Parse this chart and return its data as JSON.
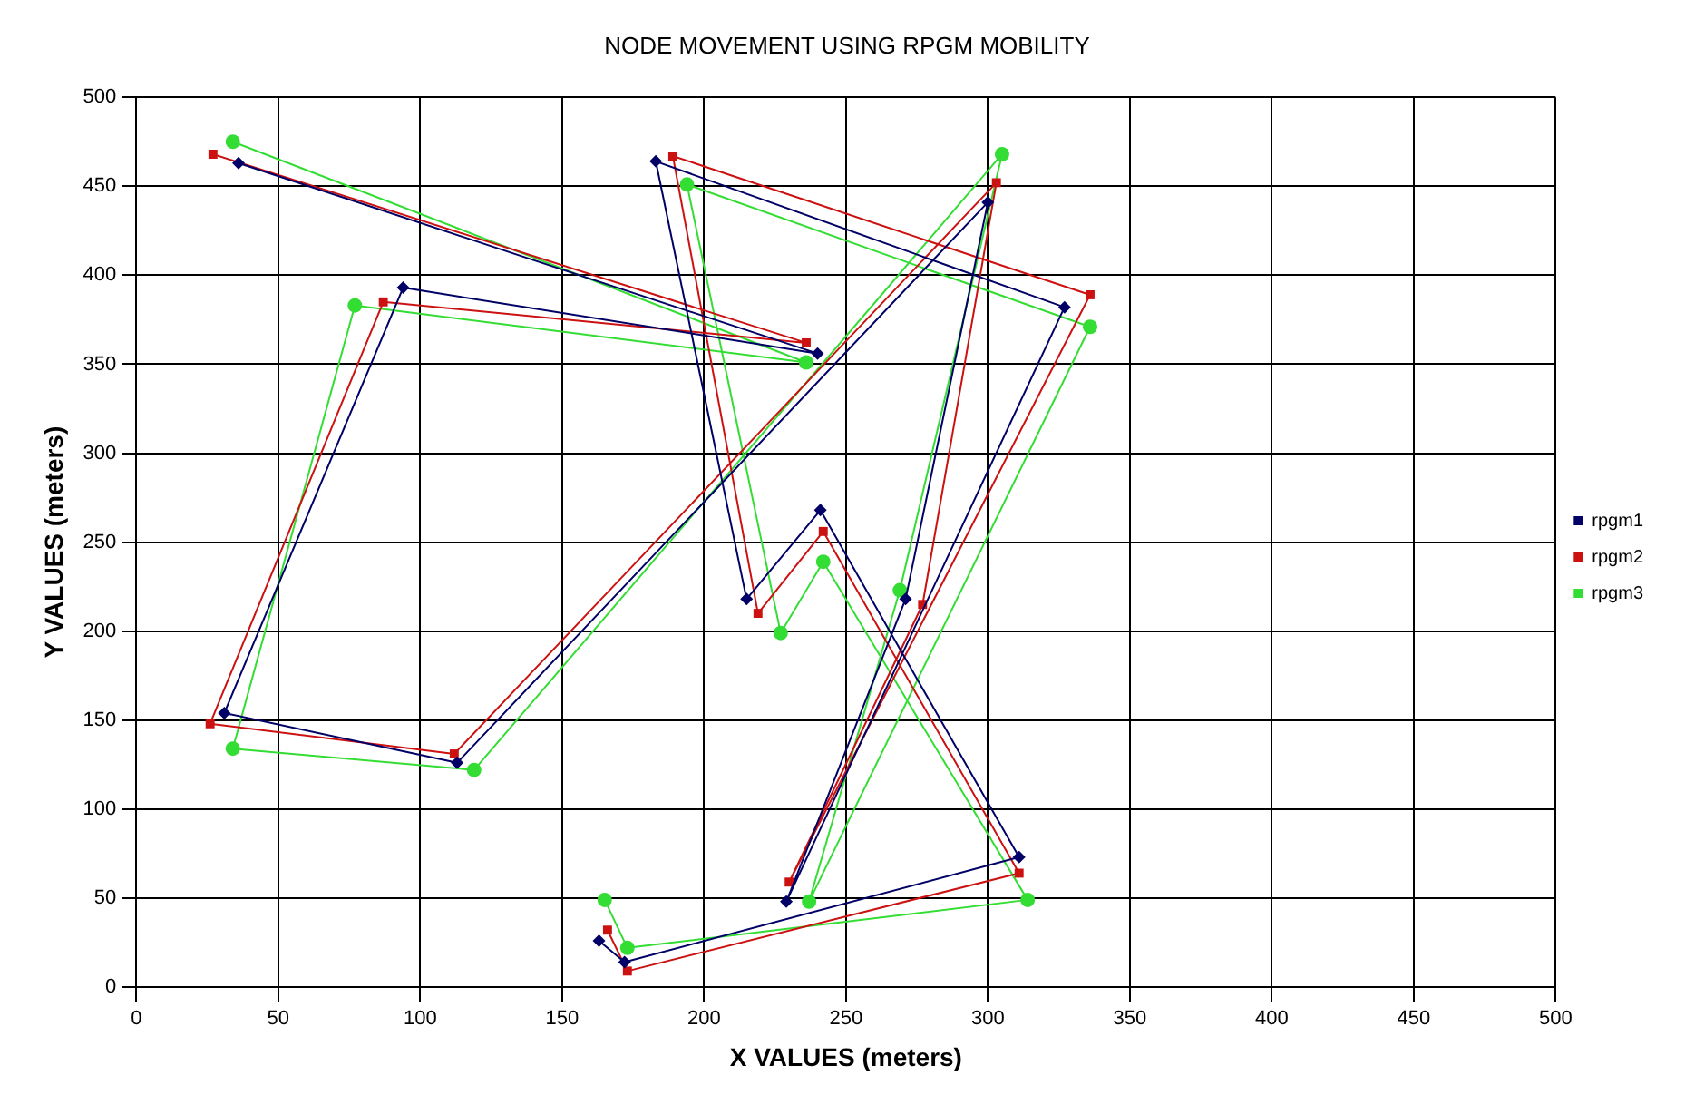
{
  "chart_data": {
    "type": "line",
    "title": "NODE MOVEMENT USING RPGM MOBILITY",
    "xlabel": "X VALUES (meters)",
    "ylabel": "Y VALUES (meters)",
    "xlim": [
      0,
      500
    ],
    "xticks": [
      0,
      50,
      100,
      150,
      200,
      250,
      300,
      350,
      400,
      450,
      500
    ],
    "ylim": [
      0,
      500
    ],
    "yticks": [
      0,
      50,
      100,
      150,
      200,
      250,
      300,
      350,
      400,
      450,
      500
    ],
    "grid": true,
    "legend": "right",
    "line_style": "solid",
    "series": [
      {
        "name": "rpgm1",
        "color": "#000066",
        "marker": "diamond",
        "x": [
          36,
          240,
          94,
          31,
          113,
          300,
          271,
          229,
          327,
          183,
          215,
          241,
          311,
          172,
          163
        ],
        "values": [
          463,
          356,
          393,
          154,
          126,
          441,
          218,
          48,
          382,
          464,
          218,
          268,
          73,
          14,
          26
        ]
      },
      {
        "name": "rpgm2",
        "color": "#cc1111",
        "marker": "square",
        "x": [
          27,
          236,
          87,
          26,
          112,
          303,
          277,
          230,
          336,
          189,
          219,
          242,
          311,
          173,
          166
        ],
        "values": [
          468,
          362,
          385,
          148,
          131,
          452,
          215,
          59,
          389,
          467,
          210,
          256,
          64,
          9,
          32
        ]
      },
      {
        "name": "rpgm3",
        "color": "#33dd33",
        "marker": "circle",
        "x": [
          34,
          236,
          77,
          34,
          119,
          305,
          269,
          237,
          336,
          194,
          227,
          242,
          314,
          173,
          165
        ],
        "values": [
          475,
          351,
          383,
          134,
          122,
          468,
          223,
          48,
          371,
          451,
          199,
          239,
          49,
          22,
          49
        ]
      }
    ]
  }
}
